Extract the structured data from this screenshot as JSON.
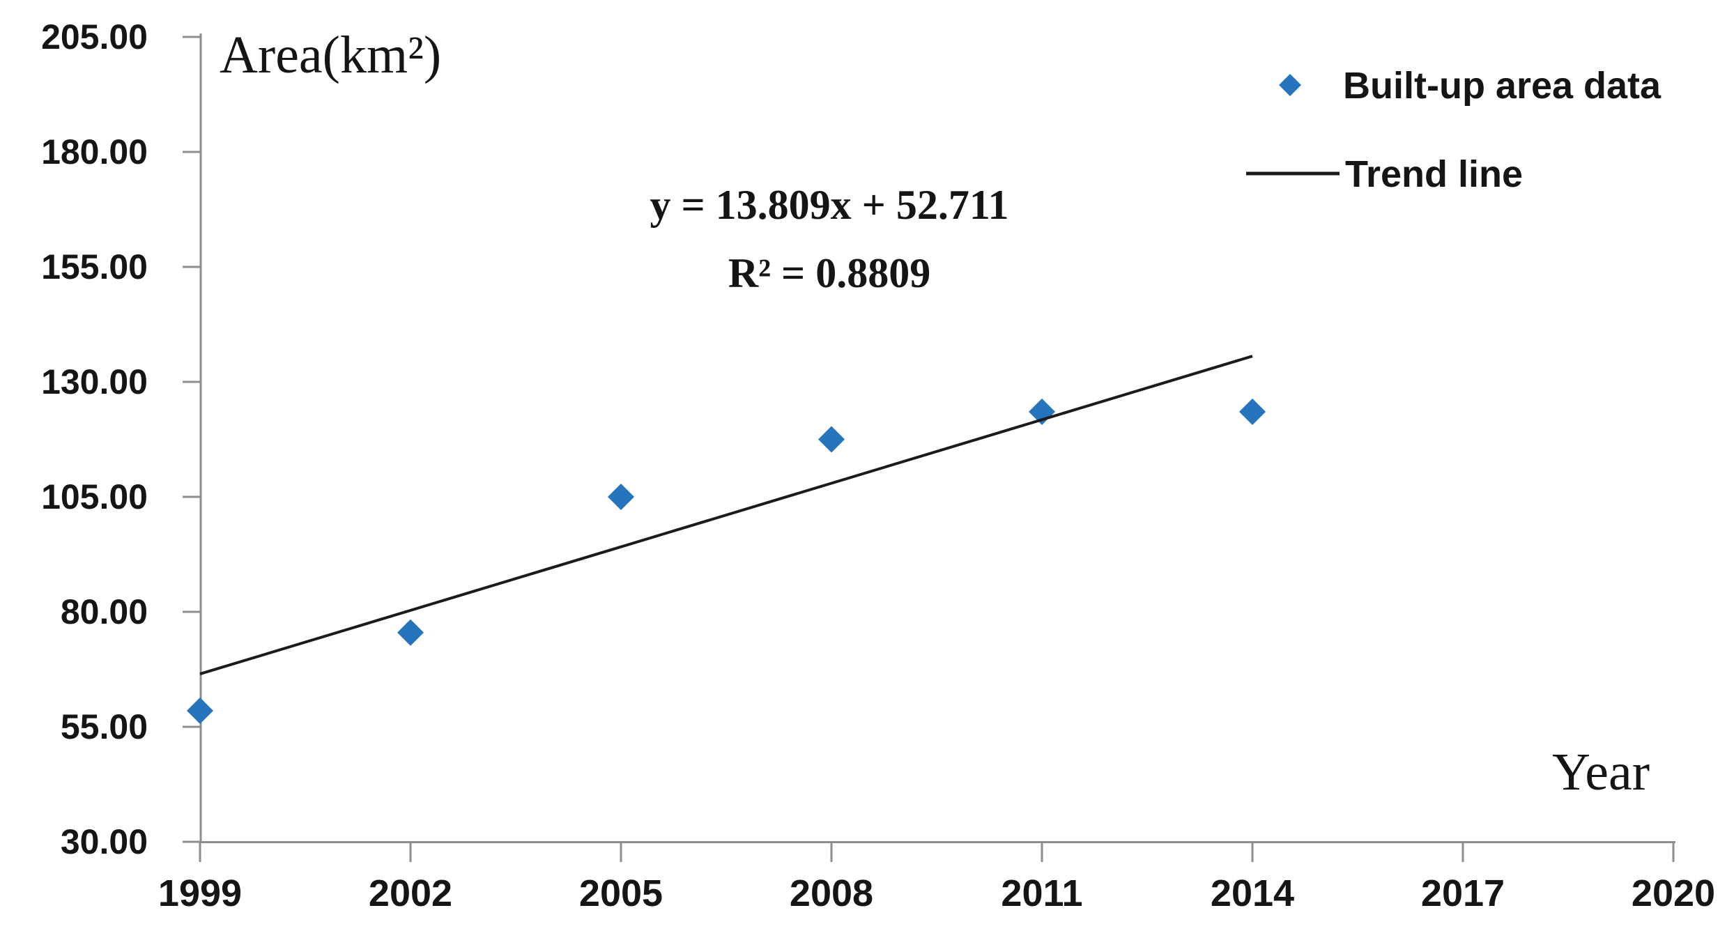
{
  "chart_data": {
    "type": "scatter",
    "title": "",
    "ylabel": "Area(km²)",
    "xlabel": "Year",
    "x_range": [
      1999,
      2020
    ],
    "y_range": [
      30,
      205
    ],
    "grid": false,
    "legend_position": "top-right",
    "axis_color": "#8e8e8e",
    "annotation": {
      "line1": "y = 13.809x + 52.711",
      "line2": "R² = 0.8809"
    },
    "x_ticks": [
      {
        "value": 1999,
        "label": "1999"
      },
      {
        "value": 2002,
        "label": "2002"
      },
      {
        "value": 2005,
        "label": "2005"
      },
      {
        "value": 2008,
        "label": "2008"
      },
      {
        "value": 2011,
        "label": "2011"
      },
      {
        "value": 2014,
        "label": "2014"
      },
      {
        "value": 2017,
        "label": "2017"
      },
      {
        "value": 2020,
        "label": "2020"
      }
    ],
    "y_ticks": [
      {
        "value": 30,
        "label": "30.00"
      },
      {
        "value": 55,
        "label": "55.00"
      },
      {
        "value": 80,
        "label": "80.00"
      },
      {
        "value": 105,
        "label": "105.00"
      },
      {
        "value": 130,
        "label": "130.00"
      },
      {
        "value": 155,
        "label": "155.00"
      },
      {
        "value": 180,
        "label": "180.00"
      },
      {
        "value": 205,
        "label": "205.00"
      }
    ],
    "series": [
      {
        "name": "Built-up area data",
        "type": "scatter",
        "marker": "diamond",
        "color": "#2574BC",
        "points": [
          {
            "year": 1999,
            "value": 58.5
          },
          {
            "year": 2002,
            "value": 75.5
          },
          {
            "year": 2005,
            "value": 105.0
          },
          {
            "year": 2008,
            "value": 117.5
          },
          {
            "year": 2011,
            "value": 123.5
          },
          {
            "year": 2014,
            "value": 123.5
          }
        ]
      },
      {
        "name": "Trend line",
        "type": "line",
        "color": "#1b1b1b",
        "points": [
          {
            "year": 1999,
            "value": 66.5
          },
          {
            "year": 2014,
            "value": 135.6
          }
        ]
      }
    ]
  }
}
